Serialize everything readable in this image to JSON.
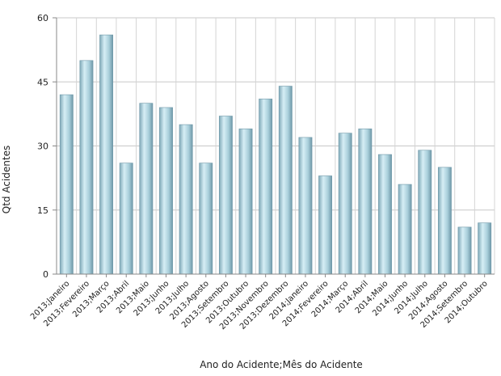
{
  "chart_data": {
    "type": "bar",
    "xlabel": "Ano do Acidente;Mês do Acidente",
    "ylabel": "Qtd Acidentes",
    "ylim": [
      0,
      60
    ],
    "yticks": [
      0,
      15,
      30,
      45,
      60
    ],
    "grid": true,
    "bar_color": "#a9cfdb",
    "categories": [
      "2013;Janeiro",
      "2013;Fevereiro",
      "2013;Março",
      "2013;Abril",
      "2013;Maio",
      "2013;Junho",
      "2013;Julho",
      "2013;Agosto",
      "2013;Setembro",
      "2013;Outubro",
      "2013;Novembro",
      "2013;Dezembro",
      "2014;Janeiro",
      "2014;Fevereiro",
      "2014;Março",
      "2014;Abril",
      "2014;Maio",
      "2014;Junho",
      "2014;Julho",
      "2014;Agosto",
      "2014;Setembro",
      "2014;Outubro"
    ],
    "values": [
      42,
      50,
      56,
      26,
      40,
      39,
      35,
      26,
      37,
      34,
      41,
      44,
      32,
      23,
      33,
      34,
      28,
      21,
      29,
      25,
      11,
      12
    ]
  }
}
